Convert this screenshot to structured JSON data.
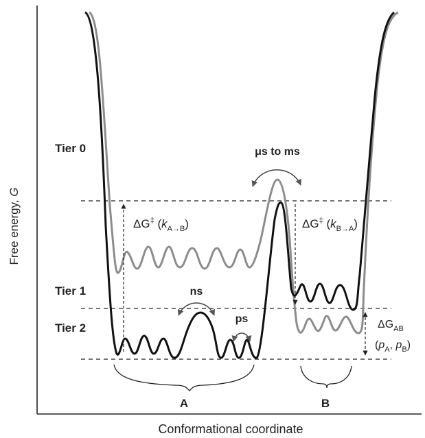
{
  "axes": {
    "ylabel_main": "Free energy, ",
    "ylabel_symbol": "G",
    "xlabel": "Conformational coordinate"
  },
  "tiers": {
    "tier0": "Tier 0",
    "tier1": "Tier 1",
    "tier2": "Tier 2"
  },
  "timescales": {
    "slow": "μs to ms",
    "ns": "ns",
    "ps": "ps"
  },
  "barriers": {
    "ab": {
      "delta": "ΔG",
      "dagger": "‡",
      "k": "k",
      "sub": "A→B"
    },
    "ba": {
      "delta": "ΔG",
      "dagger": "‡",
      "k": "k",
      "sub": "B→A"
    },
    "free_energy_diff": {
      "delta": "ΔG",
      "sub": "AB",
      "p_a": "p",
      "p_a_sub": "A",
      "p_b": "p",
      "p_b_sub": "B"
    }
  },
  "states": {
    "a": "A",
    "b": "B"
  },
  "colors": {
    "dark_curve": "#111111",
    "gray_curve": "#8c8c8c",
    "axis": "#222222"
  }
}
